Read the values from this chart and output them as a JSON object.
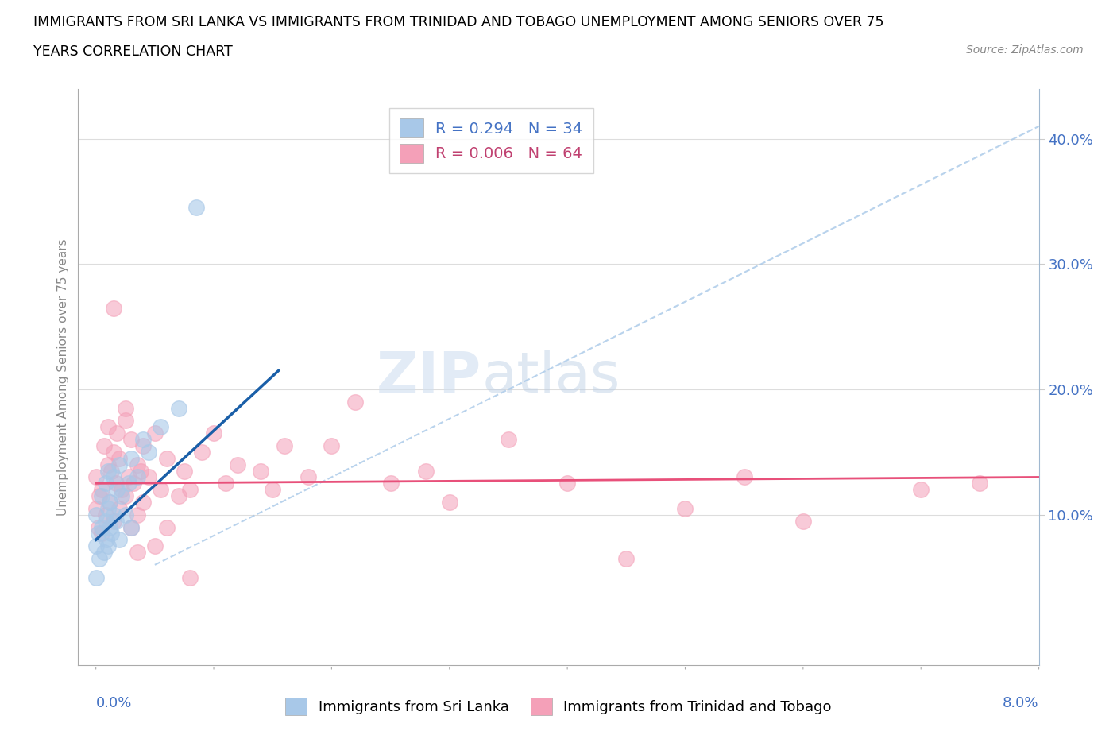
{
  "title_line1": "IMMIGRANTS FROM SRI LANKA VS IMMIGRANTS FROM TRINIDAD AND TOBAGO UNEMPLOYMENT AMONG SENIORS OVER 75",
  "title_line2": "YEARS CORRELATION CHART",
  "source_text": "Source: ZipAtlas.com",
  "ylabel": "Unemployment Among Seniors over 75 years",
  "x_label_bottom_left": "0.0%",
  "x_label_bottom_right": "8.0%",
  "xlim": [
    -0.15,
    8.0
  ],
  "ylim": [
    -2.0,
    44.0
  ],
  "right_yticks": [
    10.0,
    20.0,
    30.0,
    40.0
  ],
  "right_yticklabels": [
    "10.0%",
    "20.0%",
    "30.0%",
    "40.0%"
  ],
  "legend_blue_r": "R = 0.294",
  "legend_blue_n": "N = 34",
  "legend_pink_r": "R = 0.006",
  "legend_pink_n": "N = 64",
  "legend_label_blue": "Immigrants from Sri Lanka",
  "legend_label_pink": "Immigrants from Trinidad and Tobago",
  "color_blue": "#a8c8e8",
  "color_pink": "#f4a0b8",
  "color_blue_line": "#1a5fa8",
  "color_pink_line": "#e8507a",
  "color_ref_line": "#a8c8e8",
  "watermark_zip": "ZIP",
  "watermark_atlas": "atlas",
  "blue_trend_x0": 0.0,
  "blue_trend_y0": 8.0,
  "blue_trend_x1": 1.55,
  "blue_trend_y1": 21.5,
  "pink_trend_x0": 0.0,
  "pink_trend_y0": 12.5,
  "pink_trend_x1": 8.0,
  "pink_trend_y1": 13.0,
  "ref_line_x0": 0.5,
  "ref_line_y0": 6.0,
  "ref_line_x1": 8.0,
  "ref_line_y1": 41.0,
  "blue_points_x": [
    0.0,
    0.0,
    0.0,
    0.02,
    0.03,
    0.05,
    0.05,
    0.07,
    0.08,
    0.08,
    0.09,
    0.1,
    0.1,
    0.1,
    0.12,
    0.12,
    0.13,
    0.15,
    0.15,
    0.17,
    0.18,
    0.2,
    0.2,
    0.22,
    0.25,
    0.28,
    0.3,
    0.3,
    0.35,
    0.4,
    0.45,
    0.55,
    0.7,
    0.85
  ],
  "blue_points_y": [
    5.0,
    7.5,
    10.0,
    8.5,
    6.5,
    9.0,
    11.5,
    7.0,
    9.5,
    12.5,
    8.0,
    7.5,
    10.5,
    13.5,
    9.0,
    11.0,
    8.5,
    10.0,
    13.0,
    9.5,
    12.0,
    8.0,
    14.0,
    11.5,
    10.0,
    12.5,
    9.0,
    14.5,
    13.0,
    16.0,
    15.0,
    17.0,
    18.5,
    34.5
  ],
  "pink_points_x": [
    0.0,
    0.0,
    0.02,
    0.03,
    0.05,
    0.05,
    0.07,
    0.08,
    0.1,
    0.1,
    0.12,
    0.13,
    0.15,
    0.15,
    0.17,
    0.18,
    0.2,
    0.2,
    0.22,
    0.25,
    0.25,
    0.28,
    0.3,
    0.3,
    0.32,
    0.35,
    0.35,
    0.38,
    0.4,
    0.4,
    0.45,
    0.5,
    0.55,
    0.6,
    0.7,
    0.75,
    0.8,
    0.9,
    1.0,
    1.1,
    1.2,
    1.4,
    1.5,
    1.6,
    1.8,
    2.0,
    2.2,
    2.5,
    2.8,
    3.0,
    3.5,
    4.0,
    4.5,
    5.0,
    5.5,
    6.0,
    7.0,
    7.5,
    0.15,
    0.25,
    0.35,
    0.5,
    0.6,
    0.8
  ],
  "pink_points_y": [
    10.5,
    13.0,
    9.0,
    11.5,
    8.5,
    12.0,
    15.5,
    10.0,
    14.0,
    17.0,
    11.0,
    13.5,
    9.5,
    15.0,
    12.5,
    16.5,
    10.5,
    14.5,
    12.0,
    17.5,
    11.5,
    13.0,
    9.0,
    16.0,
    12.5,
    14.0,
    10.0,
    13.5,
    11.0,
    15.5,
    13.0,
    16.5,
    12.0,
    14.5,
    11.5,
    13.5,
    12.0,
    15.0,
    16.5,
    12.5,
    14.0,
    13.5,
    12.0,
    15.5,
    13.0,
    15.5,
    19.0,
    12.5,
    13.5,
    11.0,
    16.0,
    12.5,
    6.5,
    10.5,
    13.0,
    9.5,
    12.0,
    12.5,
    26.5,
    18.5,
    7.0,
    7.5,
    9.0,
    5.0
  ]
}
